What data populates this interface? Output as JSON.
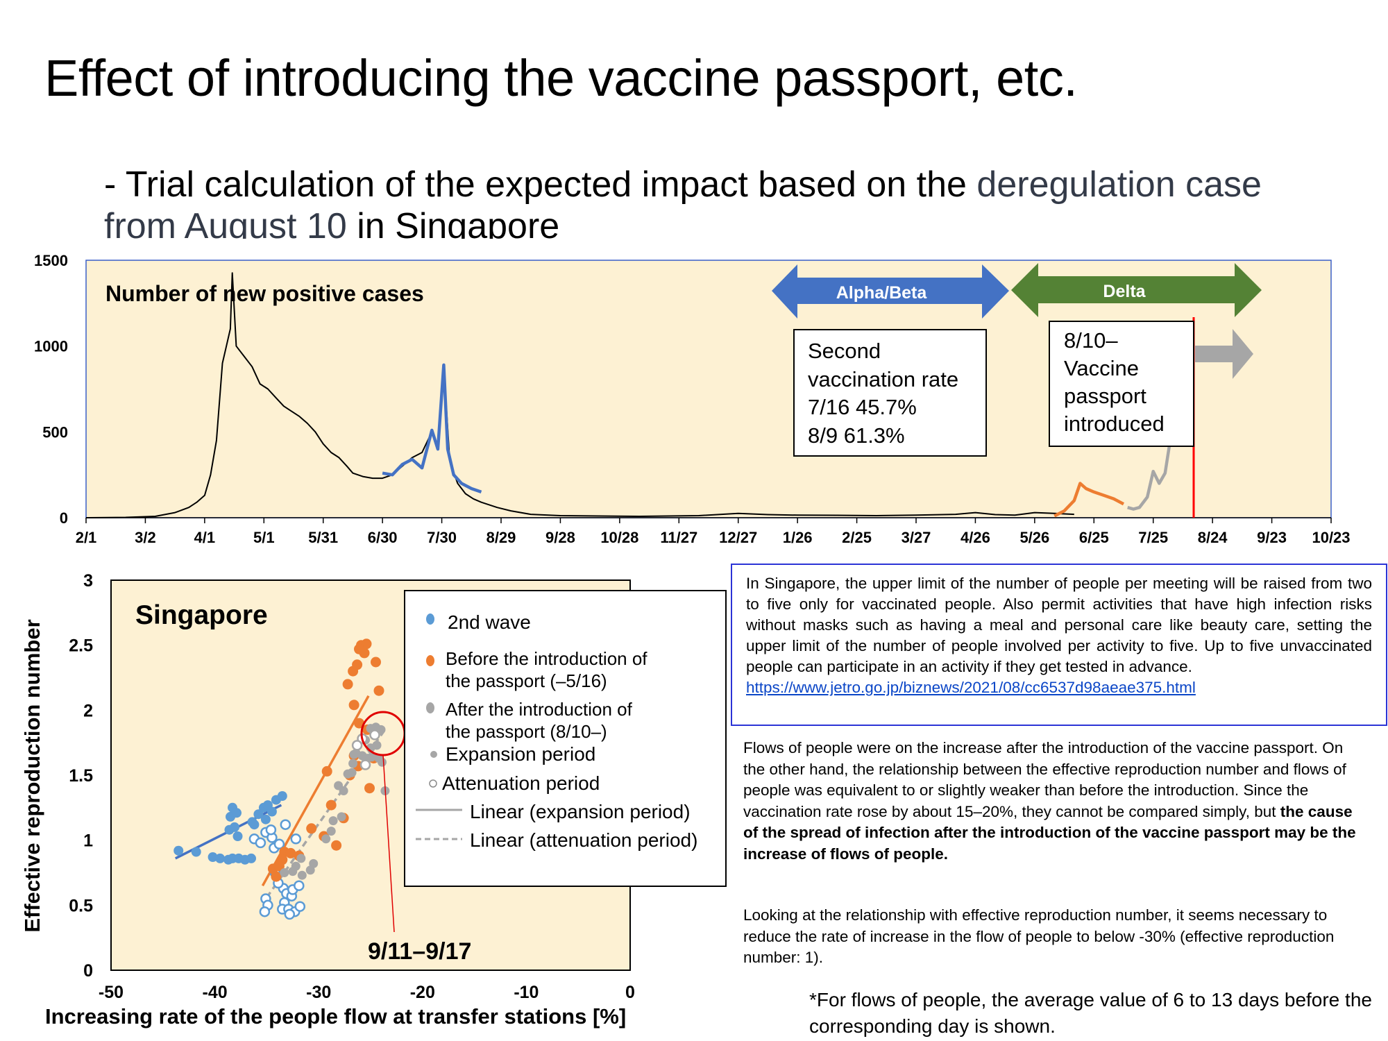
{
  "slide": {
    "title": "Effect of introducing the vaccine passport, etc.",
    "subtitle_part1": "- Trial calculation of the expected impact based on the ",
    "subtitle_part2": "deregulation case from August 10",
    "subtitle_part3": " in Singapore"
  },
  "top_chart": {
    "title": "Number of new positive cases",
    "variant_alpha": "Alpha/Beta",
    "variant_delta": "Delta",
    "vaccination_box": [
      "Second",
      "vaccination rate",
      "7/16 45.7%",
      "8/9   61.3%"
    ],
    "passport_box": [
      "8/10–",
      "Vaccine",
      "passport",
      "introduced"
    ],
    "colors": {
      "plot_bg": "#fdf1d3",
      "border": "#3a5fc8",
      "alpha_arrow": "#4472c4",
      "delta_arrow": "#548235",
      "blue_series": "#4472c4",
      "orange_series": "#ed7d31",
      "gray_series": "#a6a6a6",
      "passport_line": "#ff0000"
    }
  },
  "bottom_chart": {
    "region_label": "Singapore",
    "annotation": "9/11–9/17",
    "legend": {
      "second_wave": "2nd wave",
      "before_1": "Before the introduction of",
      "before_2": "the passport (–5/16)",
      "after_1": "After the introduction of",
      "after_2": "the passport (8/10–)",
      "expansion": "Expansion period",
      "attenuation": "Attenuation period",
      "linear_exp": "Linear (expansion period)",
      "linear_att": "Linear (attenuation period)"
    },
    "colors": {
      "plot_bg": "#fdf1d3",
      "blue": "#5b9bd5",
      "blue_line": "#4472c4",
      "orange": "#ed7d31",
      "gray": "#a6a6a6",
      "circle": "#e00000"
    }
  },
  "note_box": {
    "text": "In Singapore, the upper limit of the number of people per meeting will be raised from two to five only for vaccinated people. Also permit activities that have high infection risks without masks such as having a meal and personal care like beauty care, setting the upper limit of the number of people involved per activity to five. Up to five unvaccinated people can participate in an activity if they get tested in advance.",
    "link": "https://www.jetro.go.jp/biznews/2021/08/cc6537d98aeae375.html"
  },
  "paragraph1": {
    "normal": "Flows of people were on the increase after the introduction of the vaccine passport. On the other hand, the relationship between the effective reproduction number and flows of people was equivalent to or slightly weaker than before the introduction. Since the vaccination rate rose by about 15–20%, they cannot be compared simply, but ",
    "bold": "the cause of the spread of infection after the introduction of the vaccine passport may be the increase of flows of people."
  },
  "paragraph2": "Looking at the relationship with effective reproduction number, it seems necessary to reduce the rate of increase in the flow of people to below -30% (effective reproduction number: 1).",
  "footnote": "*For flows of people, the average value of 6 to 13 days before the corresponding day is shown.",
  "chart_data": [
    {
      "type": "line",
      "title": "Number of new positive cases",
      "ylim": [
        0,
        1500
      ],
      "yticks": [
        "0",
        "500",
        "1000",
        "1500"
      ],
      "xticks": [
        "2/1",
        "3/2",
        "4/1",
        "5/1",
        "5/31",
        "6/30",
        "7/30",
        "8/29",
        "9/28",
        "10/28",
        "11/27",
        "12/27",
        "1/26",
        "2/25",
        "3/27",
        "4/26",
        "5/26",
        "6/25",
        "7/25",
        "8/24",
        "9/23",
        "10/23"
      ],
      "x_unit": "days since 2/1 (2020)",
      "series": [
        {
          "name": "black",
          "points": [
            [
              0,
              0
            ],
            [
              20,
              2
            ],
            [
              35,
              8
            ],
            [
              45,
              30
            ],
            [
              52,
              60
            ],
            [
              56,
              90
            ],
            [
              60,
              130
            ],
            [
              63,
              250
            ],
            [
              66,
              450
            ],
            [
              69,
              900
            ],
            [
              71,
              1000
            ],
            [
              73,
              1100
            ],
            [
              74,
              1426
            ],
            [
              76,
              1000
            ],
            [
              80,
              940
            ],
            [
              84,
              880
            ],
            [
              88,
              780
            ],
            [
              92,
              750
            ],
            [
              96,
              700
            ],
            [
              100,
              650
            ],
            [
              104,
              620
            ],
            [
              108,
              590
            ],
            [
              112,
              550
            ],
            [
              116,
              500
            ],
            [
              120,
              430
            ],
            [
              124,
              380
            ],
            [
              128,
              350
            ],
            [
              132,
              300
            ],
            [
              135,
              260
            ],
            [
              140,
              240
            ],
            [
              145,
              230
            ],
            [
              150,
              230
            ],
            [
              155,
              250
            ],
            [
              160,
              300
            ],
            [
              165,
              350
            ],
            [
              170,
              380
            ],
            [
              175,
              500
            ],
            [
              178,
              400
            ],
            [
              181,
              890
            ],
            [
              184,
              330
            ],
            [
              188,
              200
            ],
            [
              192,
              140
            ],
            [
              196,
              110
            ],
            [
              200,
              90
            ],
            [
              208,
              60
            ],
            [
              215,
              40
            ],
            [
              225,
              20
            ],
            [
              240,
              12
            ],
            [
              280,
              8
            ],
            [
              310,
              12
            ],
            [
              330,
              25
            ],
            [
              345,
              18
            ],
            [
              360,
              15
            ],
            [
              380,
              14
            ],
            [
              400,
              12
            ],
            [
              420,
              15
            ],
            [
              440,
              20
            ],
            [
              450,
              30
            ],
            [
              460,
              18
            ],
            [
              470,
              15
            ],
            [
              480,
              30
            ],
            [
              490,
              25
            ],
            [
              500,
              20
            ]
          ]
        },
        {
          "name": "blue",
          "points": [
            [
              150,
              260
            ],
            [
              155,
              250
            ],
            [
              160,
              310
            ],
            [
              165,
              340
            ],
            [
              170,
              290
            ],
            [
              175,
              510
            ],
            [
              178,
              400
            ],
            [
              181,
              890
            ],
            [
              183,
              400
            ],
            [
              186,
              250
            ],
            [
              190,
              200
            ],
            [
              195,
              170
            ],
            [
              200,
              150
            ]
          ]
        },
        {
          "name": "orange",
          "points": [
            [
              490,
              10
            ],
            [
              495,
              40
            ],
            [
              500,
              100
            ],
            [
              503,
              200
            ],
            [
              506,
              170
            ],
            [
              510,
              150
            ],
            [
              515,
              130
            ],
            [
              520,
              110
            ],
            [
              525,
              80
            ]
          ]
        },
        {
          "name": "gray",
          "points": [
            [
              527,
              60
            ],
            [
              530,
              50
            ],
            [
              533,
              60
            ],
            [
              537,
              120
            ],
            [
              540,
              270
            ],
            [
              543,
              200
            ],
            [
              546,
              260
            ],
            [
              549,
              480
            ],
            [
              552,
              600
            ],
            [
              556,
              900
            ]
          ]
        }
      ],
      "annotations": [
        "Alpha/Beta",
        "Delta",
        "8/10– Vaccine passport introduced"
      ]
    },
    {
      "type": "scatter",
      "title": "Singapore",
      "xlabel": "Increasing rate of the people flow at transfer stations [%]",
      "ylabel": "Effective reproduction number",
      "xlim": [
        -50,
        0
      ],
      "ylim": [
        0,
        3
      ],
      "xticks": [
        "-50",
        "-40",
        "-30",
        "-20",
        "-10",
        "0"
      ],
      "yticks": [
        "0",
        "0.5",
        "1",
        "1.5",
        "2",
        "2.5",
        "3"
      ],
      "series": [
        {
          "name": "2nd wave",
          "points": [
            [
              -43.5,
              0.92
            ],
            [
              -41.8,
              0.91
            ],
            [
              -40.2,
              0.87
            ],
            [
              -39.5,
              0.86
            ],
            [
              -38.7,
              0.85
            ],
            [
              -38.3,
              0.86
            ],
            [
              -37.7,
              0.86
            ],
            [
              -37.1,
              0.85
            ],
            [
              -36.5,
              0.86
            ],
            [
              -38.5,
              1.18
            ],
            [
              -38.3,
              1.25
            ],
            [
              -37.9,
              1.21
            ],
            [
              -38.6,
              1.08
            ],
            [
              -38.1,
              1.1
            ],
            [
              -36.4,
              1.14
            ],
            [
              -35.8,
              1.2
            ],
            [
              -35.3,
              1.25
            ],
            [
              -34.9,
              1.27
            ],
            [
              -34.1,
              1.31
            ],
            [
              -33.5,
              1.34
            ],
            [
              -37.8,
              1.03
            ],
            [
              -36.2,
              1.12
            ],
            [
              -35.1,
              1.16
            ],
            [
              -34.5,
              1.22
            ]
          ]
        },
        {
          "name": "2nd wave attenuation",
          "points": [
            [
              -35.1,
              1.06
            ],
            [
              -34.5,
              1.02
            ],
            [
              -36.2,
              1.01
            ],
            [
              -34.3,
              0.94
            ],
            [
              -33.8,
              0.97
            ],
            [
              -34.2,
              0.75
            ],
            [
              -35.1,
              0.55
            ],
            [
              -34.9,
              0.5
            ],
            [
              -35.2,
              0.45
            ],
            [
              -33.4,
              0.63
            ],
            [
              -33.1,
              0.59
            ],
            [
              -32.6,
              0.57
            ],
            [
              -33.3,
              0.52
            ],
            [
              -33.5,
              0.47
            ],
            [
              -32.9,
              0.47
            ],
            [
              -32.3,
              0.45
            ],
            [
              -32.8,
              0.43
            ],
            [
              -31.8,
              0.49
            ],
            [
              -32.5,
              0.62
            ],
            [
              -31.9,
              0.65
            ],
            [
              -33.9,
              0.67
            ],
            [
              -35.6,
              0.98
            ],
            [
              -34.6,
              1.08
            ],
            [
              -33.2,
              1.12
            ],
            [
              -32.2,
              1.01
            ]
          ]
        },
        {
          "name": "Before the introduction of the passport (–5/16)",
          "points": [
            [
              -33.3,
              0.91
            ],
            [
              -32.7,
              0.9
            ],
            [
              -33.5,
              0.85
            ],
            [
              -34.1,
              0.72
            ],
            [
              -34.4,
              0.78
            ],
            [
              -33.8,
              0.8
            ],
            [
              -31.9,
              0.88
            ],
            [
              -30.7,
              1.09
            ],
            [
              -29.5,
              1.03
            ],
            [
              -28.3,
              0.96
            ],
            [
              -27.6,
              1.17
            ],
            [
              -28.8,
              1.27
            ],
            [
              -29.2,
              1.53
            ],
            [
              -27.0,
              1.5
            ],
            [
              -26.6,
              1.65
            ],
            [
              -26.1,
              1.9
            ],
            [
              -26.6,
              2.04
            ],
            [
              -27.2,
              2.2
            ],
            [
              -26.7,
              2.3
            ],
            [
              -26.3,
              2.35
            ],
            [
              -25.6,
              2.44
            ],
            [
              -25.9,
              2.5
            ],
            [
              -25.4,
              2.51
            ],
            [
              -26.1,
              2.47
            ],
            [
              -24.5,
              2.37
            ],
            [
              -24.2,
              2.15
            ],
            [
              -25.3,
              1.85
            ],
            [
              -24.7,
              1.63
            ],
            [
              -25.1,
              1.4
            ],
            [
              -26.2,
              1.57
            ]
          ]
        },
        {
          "name": "Expansion period",
          "points": [
            [
              -33.3,
              0.75
            ],
            [
              -32.5,
              0.76
            ],
            [
              -32.2,
              0.8
            ],
            [
              -31.7,
              0.86
            ],
            [
              -31.6,
              0.73
            ],
            [
              -30.8,
              0.77
            ],
            [
              -30.5,
              0.82
            ],
            [
              -29.3,
              1.01
            ],
            [
              -28.8,
              1.07
            ],
            [
              -28.6,
              1.15
            ],
            [
              -27.6,
              1.38
            ],
            [
              -28.1,
              1.42
            ],
            [
              -27.2,
              1.51
            ],
            [
              -26.8,
              1.52
            ],
            [
              -26.7,
              1.59
            ],
            [
              -26.4,
              1.67
            ],
            [
              -25.8,
              1.65
            ],
            [
              -25.3,
              1.63
            ],
            [
              -25.0,
              1.71
            ],
            [
              -24.4,
              1.73
            ],
            [
              -24.2,
              1.63
            ],
            [
              -24.9,
              1.64
            ],
            [
              -23.9,
              1.6
            ],
            [
              -23.6,
              1.38
            ],
            [
              -27.8,
              1.18
            ],
            [
              -26.6,
              1.66
            ],
            [
              -25.5,
              1.77
            ],
            [
              -25.0,
              1.86
            ],
            [
              -24.5,
              1.87
            ],
            [
              -24.0,
              1.85
            ]
          ]
        },
        {
          "name": "Attenuation period",
          "points": [
            [
              -25.8,
              1.78
            ],
            [
              -26.3,
              1.73
            ],
            [
              -24.6,
              1.81
            ],
            [
              -25.5,
              1.58
            ]
          ]
        }
      ],
      "trendlines": [
        {
          "name": "Linear (2nd wave)",
          "from": [
            -43.8,
            0.86
          ],
          "to": [
            -33.6,
            1.27
          ]
        },
        {
          "name": "Linear (expansion period)",
          "from": [
            -35.4,
            0.65
          ],
          "to": [
            -25.2,
            2.11
          ]
        },
        {
          "name": "Linear (attenuation period)",
          "from": [
            -35.0,
            0.56
          ],
          "to": [
            -23.8,
            1.83
          ]
        }
      ],
      "annotations": [
        "9/11–9/17"
      ]
    }
  ]
}
